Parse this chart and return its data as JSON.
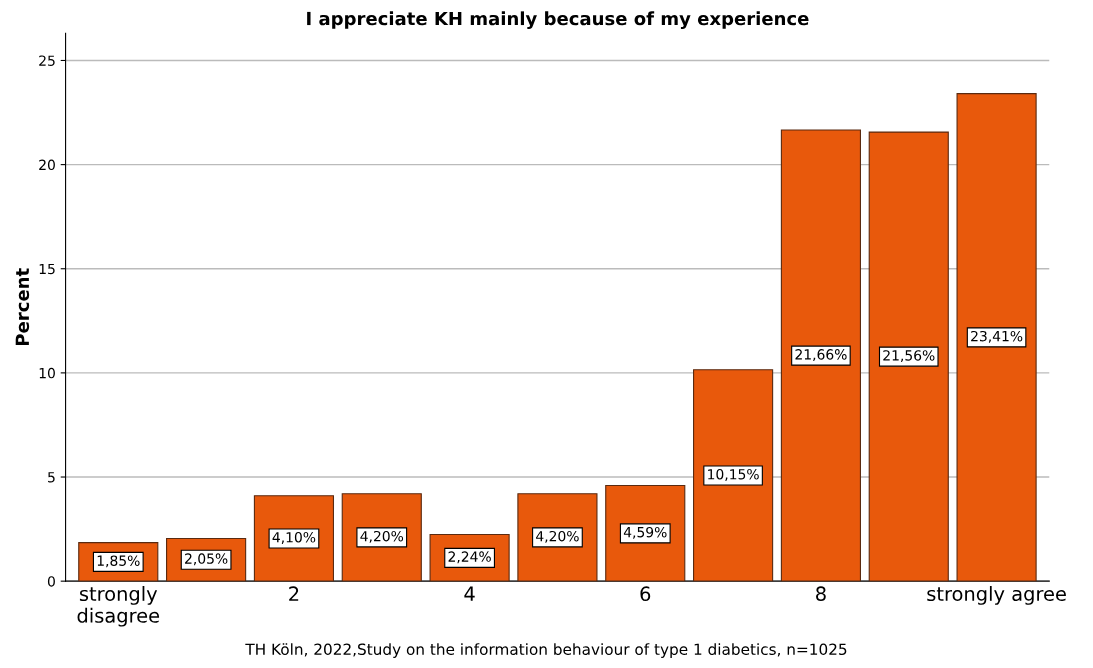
{
  "chart_data": {
    "type": "bar",
    "title": "I appreciate KH mainly because of my experience",
    "ylabel": "Percent",
    "categories": [
      "strongly\ndisagree",
      null,
      "2",
      null,
      "4",
      null,
      "6",
      null,
      "8",
      null,
      "strongly agree"
    ],
    "values": [
      1.85,
      2.05,
      4.1,
      4.2,
      2.24,
      4.2,
      4.59,
      10.15,
      21.66,
      21.56,
      23.41
    ],
    "value_labels": [
      "1,85%",
      "2,05%",
      "4,10%",
      "4,20%",
      "2,24%",
      "4,20%",
      "4,59%",
      "10,15%",
      "21,66%",
      "21,56%",
      "23,41%"
    ],
    "color": "#e8590c",
    "ylim": [
      0,
      26.3
    ],
    "yticks": [
      0,
      5,
      10,
      15,
      20,
      25
    ],
    "grid": "y",
    "annotations": [
      "TH Köln, 2022,Study on the information behaviour of type 1 diabetics, n=1025"
    ]
  }
}
